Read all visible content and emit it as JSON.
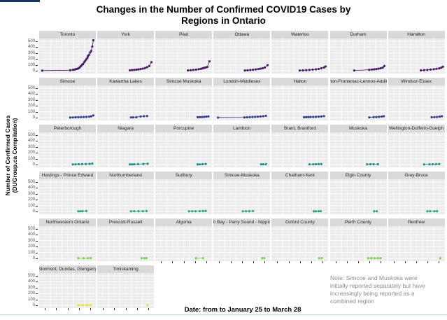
{
  "title": {
    "line1": "Changes in the Number of Confirmed COVID19 Cases by",
    "line2": "Regions in Ontario"
  },
  "y_axis_label": {
    "line1": "Number of Confirmed Cases",
    "line2": "(DUGroup.ca Compilation)"
  },
  "note": "Note: Simcoe and Muskoka were initially reported separately but have increasingly being reported as a combined region",
  "colors": {
    "panel_background": "#ebebeb",
    "strip_background": "#d9d9d9",
    "gridline": "#ffffff",
    "top_accent_bar": "#17365d",
    "bottom_border_line": "#bdd7ee"
  },
  "chart_data": {
    "type": "line",
    "title": "Changes in the Number of Confirmed COVID19 Cases by Regions in Ontario",
    "xlabel": "Date: from to January 25 to March 28",
    "ylabel": "Number of Confirmed Cases (DUGroup.ca Compilation)",
    "x_range_dates": [
      "January 25",
      "March 28"
    ],
    "ylim": [
      0,
      500
    ],
    "yticks": [
      0,
      100,
      200,
      300,
      400,
      500
    ],
    "grid": true,
    "legend": "none",
    "facet_layout": {
      "columns": 7,
      "rows": 6,
      "last_row_panels": 2
    },
    "row_colors": [
      "#4a1a66",
      "#333d8f",
      "#1e8f89",
      "#2ba66f",
      "#7ccf4f",
      "#f0df24"
    ],
    "series": [
      {
        "name": "Toronto",
        "points": [
          [
            0.03,
            2
          ],
          [
            0.55,
            8
          ],
          [
            0.6,
            15
          ],
          [
            0.63,
            20
          ],
          [
            0.65,
            25
          ],
          [
            0.67,
            30
          ],
          [
            0.69,
            35
          ],
          [
            0.71,
            45
          ],
          [
            0.73,
            60
          ],
          [
            0.75,
            80
          ],
          [
            0.77,
            100
          ],
          [
            0.79,
            115
          ],
          [
            0.81,
            145
          ],
          [
            0.83,
            170
          ],
          [
            0.85,
            195
          ],
          [
            0.87,
            220
          ],
          [
            0.88,
            250
          ],
          [
            0.9,
            270
          ],
          [
            0.92,
            310
          ],
          [
            0.94,
            335
          ],
          [
            0.96,
            410
          ],
          [
            0.98,
            520
          ]
        ]
      },
      {
        "name": "York",
        "points": [
          [
            0.58,
            8
          ],
          [
            0.62,
            10
          ],
          [
            0.66,
            14
          ],
          [
            0.7,
            18
          ],
          [
            0.74,
            22
          ],
          [
            0.78,
            28
          ],
          [
            0.82,
            35
          ],
          [
            0.86,
            45
          ],
          [
            0.9,
            60
          ],
          [
            0.94,
            80
          ],
          [
            0.98,
            145
          ]
        ]
      },
      {
        "name": "Peel",
        "points": [
          [
            0.58,
            6
          ],
          [
            0.63,
            9
          ],
          [
            0.68,
            13
          ],
          [
            0.73,
            18
          ],
          [
            0.78,
            25
          ],
          [
            0.82,
            32
          ],
          [
            0.85,
            40
          ],
          [
            0.88,
            48
          ],
          [
            0.91,
            55
          ],
          [
            0.94,
            65
          ],
          [
            0.98,
            160
          ]
        ]
      },
      {
        "name": "Ottawa",
        "points": [
          [
            0.56,
            5
          ],
          [
            0.61,
            8
          ],
          [
            0.66,
            12
          ],
          [
            0.71,
            16
          ],
          [
            0.76,
            22
          ],
          [
            0.81,
            28
          ],
          [
            0.85,
            35
          ],
          [
            0.89,
            42
          ],
          [
            0.93,
            55
          ],
          [
            0.98,
            95
          ]
        ]
      },
      {
        "name": "Waterloo",
        "points": [
          [
            0.5,
            4
          ],
          [
            0.56,
            6
          ],
          [
            0.62,
            9
          ],
          [
            0.68,
            13
          ],
          [
            0.74,
            18
          ],
          [
            0.8,
            24
          ],
          [
            0.85,
            30
          ],
          [
            0.9,
            42
          ],
          [
            0.95,
            55
          ],
          [
            0.98,
            72
          ]
        ]
      },
      {
        "name": "Durham",
        "points": [
          [
            0.42,
            4
          ],
          [
            0.7,
            15
          ],
          [
            0.75,
            20
          ],
          [
            0.79,
            24
          ],
          [
            0.83,
            28
          ],
          [
            0.87,
            34
          ],
          [
            0.91,
            42
          ],
          [
            0.95,
            52
          ],
          [
            0.98,
            80
          ]
        ]
      },
      {
        "name": "Hamilton",
        "points": [
          [
            0.58,
            6
          ],
          [
            0.64,
            10
          ],
          [
            0.7,
            14
          ],
          [
            0.76,
            19
          ],
          [
            0.82,
            25
          ],
          [
            0.87,
            32
          ],
          [
            0.92,
            40
          ],
          [
            0.96,
            52
          ],
          [
            0.99,
            68
          ]
        ]
      },
      {
        "name": "Simcoe",
        "points": [
          [
            0.55,
            3
          ],
          [
            0.6,
            4
          ],
          [
            0.65,
            6
          ],
          [
            0.7,
            7
          ],
          [
            0.75,
            9
          ],
          [
            0.8,
            11
          ],
          [
            0.85,
            13
          ],
          [
            0.9,
            16
          ],
          [
            0.94,
            22
          ],
          [
            0.98,
            38
          ]
        ]
      },
      {
        "name": "Kawartha Lakes",
        "points": [
          [
            0.6,
            4
          ],
          [
            0.64,
            5
          ],
          [
            0.7,
            8
          ],
          [
            0.78,
            20
          ],
          [
            0.84,
            24
          ],
          [
            0.9,
            27
          ]
        ]
      },
      {
        "name": "Simcoe Muskoka",
        "points": [
          [
            0.76,
            7
          ],
          [
            0.8,
            9
          ],
          [
            0.84,
            11
          ],
          [
            0.88,
            14
          ],
          [
            0.92,
            17
          ],
          [
            0.96,
            21
          ]
        ]
      },
      {
        "name": "London-Middlesex",
        "points": [
          [
            0.06,
            2
          ],
          [
            0.55,
            5
          ],
          [
            0.6,
            7
          ],
          [
            0.65,
            9
          ],
          [
            0.7,
            12
          ],
          [
            0.75,
            14
          ],
          [
            0.8,
            17
          ],
          [
            0.85,
            20
          ],
          [
            0.9,
            24
          ],
          [
            0.95,
            30
          ]
        ]
      },
      {
        "name": "Halton",
        "points": [
          [
            0.58,
            7
          ],
          [
            0.62,
            9
          ],
          [
            0.66,
            10
          ],
          [
            0.7,
            11
          ],
          [
            0.75,
            12
          ],
          [
            0.8,
            14
          ],
          [
            0.85,
            17
          ],
          [
            0.9,
            20
          ],
          [
            0.95,
            26
          ]
        ]
      },
      {
        "name": "Kingston-Frontenac-Lennox-Addington",
        "points": [
          [
            0.7,
            5
          ],
          [
            0.78,
            9
          ],
          [
            0.83,
            11
          ],
          [
            0.88,
            14
          ],
          [
            0.93,
            18
          ],
          [
            0.97,
            24
          ]
        ]
      },
      {
        "name": "Windsor-Essex",
        "points": [
          [
            0.78,
            7
          ],
          [
            0.83,
            9
          ],
          [
            0.88,
            12
          ],
          [
            0.93,
            16
          ],
          [
            0.97,
            24
          ]
        ]
      },
      {
        "name": "Peterborough",
        "points": [
          [
            0.6,
            3
          ],
          [
            0.65,
            4
          ],
          [
            0.71,
            6
          ],
          [
            0.77,
            7
          ],
          [
            0.84,
            9
          ],
          [
            0.91,
            11
          ],
          [
            0.96,
            16
          ]
        ]
      },
      {
        "name": "Niagara",
        "points": [
          [
            0.58,
            3
          ],
          [
            0.62,
            4
          ],
          [
            0.66,
            5
          ],
          [
            0.73,
            7
          ],
          [
            0.83,
            10
          ],
          [
            0.91,
            13
          ]
        ]
      },
      {
        "name": "Porcupine",
        "points": [
          [
            0.76,
            3
          ],
          [
            0.8,
            4
          ],
          [
            0.85,
            6
          ],
          [
            0.91,
            9
          ]
        ]
      },
      {
        "name": "Lambton",
        "points": [
          [
            0.86,
            4
          ],
          [
            0.9,
            5
          ],
          [
            0.95,
            7
          ]
        ]
      },
      {
        "name": "Brant, Brantford",
        "points": [
          [
            0.68,
            3
          ],
          [
            0.75,
            4
          ],
          [
            0.8,
            5
          ],
          [
            0.85,
            7
          ],
          [
            0.9,
            9
          ]
        ]
      },
      {
        "name": "Muskoka",
        "points": [
          [
            0.66,
            4
          ],
          [
            0.72,
            5
          ],
          [
            0.78,
            5
          ],
          [
            0.86,
            5
          ]
        ]
      },
      {
        "name": "Wellington-Dufferin-Guelph",
        "points": [
          [
            0.64,
            3
          ],
          [
            0.74,
            4
          ],
          [
            0.8,
            5
          ],
          [
            0.86,
            7
          ],
          [
            0.92,
            9
          ]
        ]
      },
      {
        "name": "Hastings - Prince Edward",
        "points": [
          [
            0.7,
            3
          ],
          [
            0.74,
            4
          ],
          [
            0.78,
            5
          ],
          [
            0.85,
            7
          ]
        ]
      },
      {
        "name": "Northumberland",
        "points": [
          [
            0.6,
            3
          ],
          [
            0.66,
            4
          ],
          [
            0.74,
            4
          ],
          [
            0.82,
            5
          ],
          [
            0.89,
            7
          ]
        ]
      },
      {
        "name": "Sudbury",
        "points": [
          [
            0.6,
            3
          ],
          [
            0.66,
            4
          ],
          [
            0.72,
            4
          ],
          [
            0.8,
            5
          ],
          [
            0.86,
            7
          ],
          [
            0.91,
            9
          ]
        ]
      },
      {
        "name": "Simcoe-Muskoka",
        "points": [
          [
            0.52,
            3
          ],
          [
            0.58,
            4
          ],
          [
            0.64,
            5
          ],
          [
            0.71,
            7
          ]
        ]
      },
      {
        "name": "Chatham-Kent",
        "points": [
          [
            0.76,
            3
          ],
          [
            0.8,
            3
          ],
          [
            0.85,
            4
          ],
          [
            0.89,
            5
          ]
        ]
      },
      {
        "name": "Elgin County",
        "points": [
          [
            0.79,
            3
          ],
          [
            0.84,
            4
          ]
        ]
      },
      {
        "name": "Grey-Bruce",
        "points": [
          [
            0.7,
            3
          ],
          [
            0.75,
            4
          ],
          [
            0.83,
            4
          ],
          [
            0.88,
            5
          ]
        ]
      },
      {
        "name": "Northwestern Ontario",
        "points": [
          [
            0.7,
            3
          ],
          [
            0.8,
            3
          ],
          [
            0.88,
            4
          ],
          [
            0.93,
            5
          ]
        ]
      },
      {
        "name": "Prescott-Russell",
        "points": [
          [
            0.8,
            3
          ],
          [
            0.85,
            4
          ],
          [
            0.89,
            5
          ]
        ]
      },
      {
        "name": "Algoma",
        "points": [
          [
            0.73,
            3
          ],
          [
            0.86,
            4
          ]
        ]
      },
      {
        "name": "North Bay - Parry Sound - Nippissing",
        "points": [
          [
            0.88,
            3
          ],
          [
            0.92,
            4
          ]
        ]
      },
      {
        "name": "Oxford County",
        "points": [
          [
            0.86,
            3
          ],
          [
            0.91,
            4
          ]
        ]
      },
      {
        "name": "Perth County",
        "points": [
          [
            0.68,
            3
          ],
          [
            0.74,
            3
          ],
          [
            0.8,
            3
          ],
          [
            0.86,
            4
          ],
          [
            0.91,
            4
          ]
        ]
      },
      {
        "name": "Renfrew",
        "points": [
          [
            0.94,
            3
          ]
        ]
      },
      {
        "name": "Stormont, Dundas, Glengarry",
        "points": [
          [
            0.7,
            2
          ],
          [
            0.78,
            2
          ],
          [
            0.86,
            2
          ],
          [
            0.93,
            3
          ]
        ]
      },
      {
        "name": "Timiskaming",
        "points": [
          [
            0.91,
            2
          ]
        ]
      }
    ]
  }
}
